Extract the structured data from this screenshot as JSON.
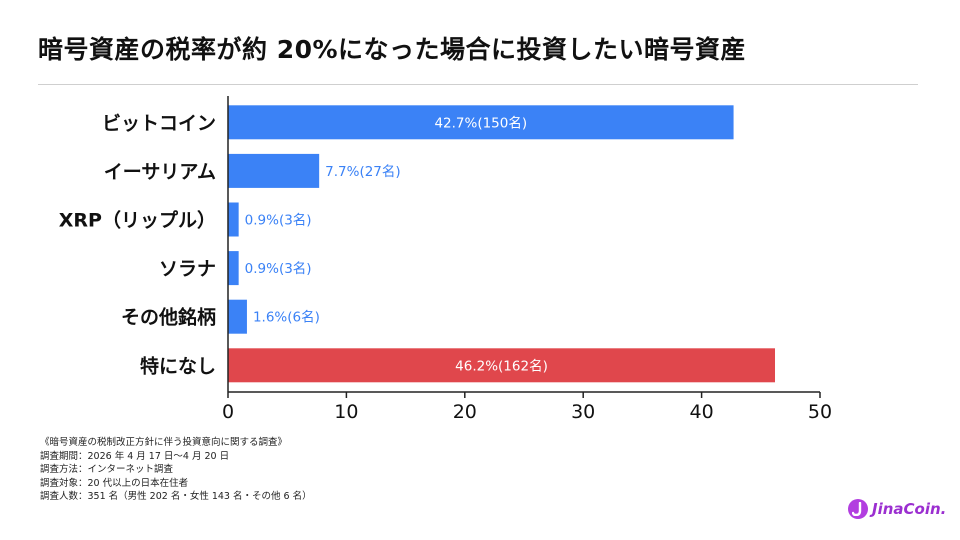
{
  "title": "暗号資産の税率が約 20%になった場合に投資したい暗号資産",
  "chart_data": {
    "type": "bar",
    "orientation": "horizontal",
    "categories": [
      "ビットコイン",
      "イーサリアム",
      "XRP（リップル）",
      "ソラナ",
      "その他銘柄",
      "特になし"
    ],
    "values": [
      42.7,
      7.7,
      0.9,
      0.9,
      1.6,
      46.2
    ],
    "data_labels": [
      "42.7%(150名)",
      "7.7%(27名)",
      "0.9%(3名)",
      "0.9%(3名)",
      "1.6%(6名)",
      "46.2%(162名)"
    ],
    "xlim": [
      0,
      50
    ],
    "x_ticks": [
      0,
      10,
      20,
      30,
      40,
      50
    ],
    "grid": false,
    "colors": [
      "#3b82f6",
      "#3b82f6",
      "#3b82f6",
      "#3b82f6",
      "#3b82f6",
      "#e0474c"
    ]
  },
  "notes": {
    "survey_name": "《暗号資産の税制改正方針に伴う投資意向に関する調査》",
    "period": "調査期間：2026 年 4 月 17 日～4 月 20 日",
    "method": "調査方法：インターネット調査",
    "target": "調査対象：20 代以上の日本在住者",
    "respondents": "調査人数：351 名（男性 202 名・女性 143 名・その他 6 名）"
  },
  "brand": {
    "logo_text": "JinaCoin.",
    "color": "#9b2fd0"
  }
}
